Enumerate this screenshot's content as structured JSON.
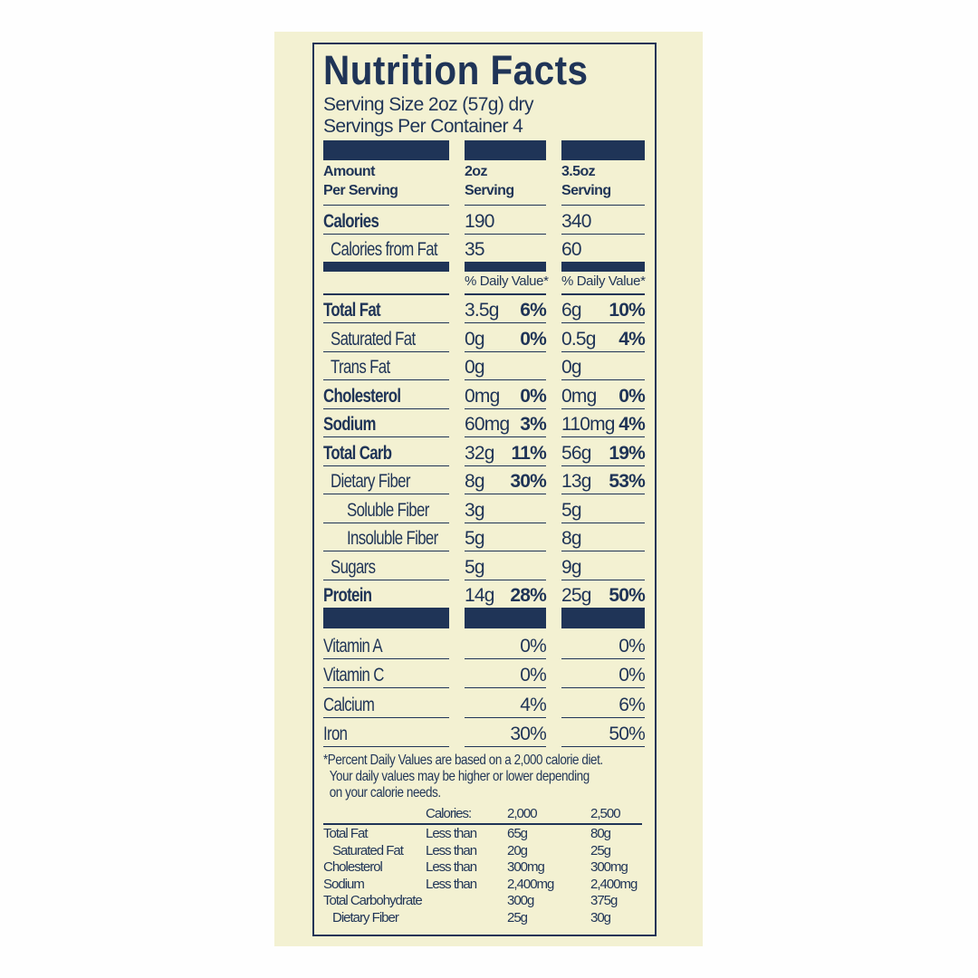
{
  "title": "Nutrition Facts",
  "serving_size": "Serving Size 2oz (57g) dry",
  "servings_per_container": "Servings Per Container 4",
  "headers": {
    "col1": [
      "Amount",
      "Per Serving"
    ],
    "col2": [
      "2oz",
      "Serving"
    ],
    "col3": [
      "3.5oz",
      "Serving"
    ]
  },
  "calories_rows": [
    {
      "label": "Calories",
      "bold": true,
      "indent": 0,
      "a2": "190",
      "a3": "340"
    },
    {
      "label": "Calories from Fat",
      "bold": false,
      "indent": 1,
      "a2": "35",
      "a3": "60"
    }
  ],
  "daily_value_label": "% Daily Value*",
  "nutrients": [
    {
      "label": "Total Fat",
      "bold": true,
      "indent": 0,
      "a2": "3.5g",
      "p2": "6%",
      "a3": "6g",
      "p3": "10%"
    },
    {
      "label": "Saturated Fat",
      "bold": false,
      "indent": 1,
      "a2": "0g",
      "p2": "0%",
      "a3": "0.5g",
      "p3": "4%"
    },
    {
      "label": "Trans Fat",
      "bold": false,
      "indent": 1,
      "a2": "0g",
      "p2": "",
      "a3": "0g",
      "p3": ""
    },
    {
      "label": "Cholesterol",
      "bold": true,
      "indent": 0,
      "a2": "0mg",
      "p2": "0%",
      "a3": "0mg",
      "p3": "0%"
    },
    {
      "label": "Sodium",
      "bold": true,
      "indent": 0,
      "a2": "60mg",
      "p2": "3%",
      "a3": "110mg",
      "p3": "4%"
    },
    {
      "label": "Total Carb",
      "bold": true,
      "indent": 0,
      "a2": "32g",
      "p2": "11%",
      "a3": "56g",
      "p3": "19%"
    },
    {
      "label": "Dietary Fiber",
      "bold": false,
      "indent": 1,
      "a2": "8g",
      "p2": "30%",
      "a3": "13g",
      "p3": "53%"
    },
    {
      "label": "Soluble Fiber",
      "bold": false,
      "indent": 2,
      "a2": "3g",
      "p2": "",
      "a3": "5g",
      "p3": ""
    },
    {
      "label": "Insoluble Fiber",
      "bold": false,
      "indent": 2,
      "a2": "5g",
      "p2": "",
      "a3": "8g",
      "p3": ""
    },
    {
      "label": "Sugars",
      "bold": false,
      "indent": 1,
      "a2": "5g",
      "p2": "",
      "a3": "9g",
      "p3": ""
    },
    {
      "label": "Protein",
      "bold": true,
      "indent": 0,
      "a2": "14g",
      "p2": "28%",
      "a3": "25g",
      "p3": "50%"
    }
  ],
  "vitamins": [
    {
      "label": "Vitamin A",
      "p2": "0%",
      "p3": "0%"
    },
    {
      "label": "Vitamin C",
      "p2": "0%",
      "p3": "0%"
    },
    {
      "label": "Calcium",
      "p2": "4%",
      "p3": "6%"
    },
    {
      "label": "Iron",
      "p2": "30%",
      "p3": "50%"
    }
  ],
  "footnote": [
    "*Percent Daily Values are based on a 2,000 calorie diet.",
    "Your daily values may be higher or lower depending",
    "on your calorie needs."
  ],
  "reference": {
    "header": [
      "Calories:",
      "2,000",
      "2,500"
    ],
    "rows": [
      {
        "label": "Total Fat",
        "indent": 0,
        "cond": "Less than",
        "v1": "65g",
        "v2": "80g"
      },
      {
        "label": "Saturated Fat",
        "indent": 1,
        "cond": "Less than",
        "v1": "20g",
        "v2": "25g"
      },
      {
        "label": "Cholesterol",
        "indent": 0,
        "cond": "Less than",
        "v1": "300mg",
        "v2": "300mg"
      },
      {
        "label": "Sodium",
        "indent": 0,
        "cond": "Less than",
        "v1": "2,400mg",
        "v2": "2,400mg"
      },
      {
        "label": "Total Carbohydrate",
        "indent": 0,
        "cond": "",
        "v1": "300g",
        "v2": "375g"
      },
      {
        "label": "Dietary Fiber",
        "indent": 1,
        "cond": "",
        "v1": "25g",
        "v2": "30g"
      }
    ]
  },
  "colors": {
    "ink": "#1f3457",
    "label_bg": "#f3f1d2"
  }
}
